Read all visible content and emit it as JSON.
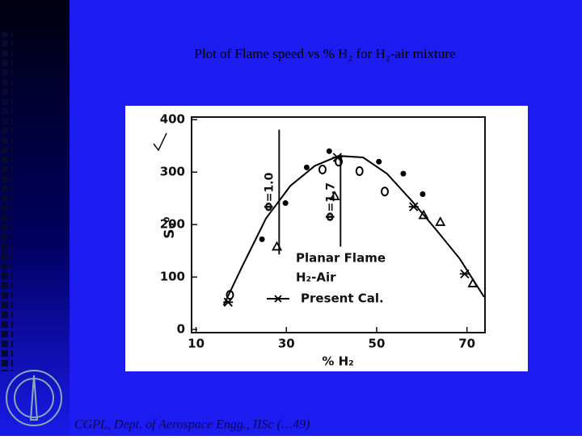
{
  "slide_title": "Plot of Flame speed vs % H₂  for H₂-air mixture",
  "footer": "CGPL, Dept. of Aerospace Engg., IISc (…49)",
  "chart_data": {
    "type": "scatter",
    "x_label": "% H₂",
    "y_label": "Sᵤ⁰",
    "xlim": [
      9,
      74
    ],
    "ylim": [
      -6,
      405
    ],
    "xticks": [
      10,
      30,
      50,
      70
    ],
    "yticks": [
      0,
      100,
      200,
      300,
      400
    ],
    "legend": [
      "Planar Flame",
      "H₂-Air"
    ],
    "series": [
      {
        "name": "Present Cal.",
        "kind": "line",
        "color": "#000000",
        "x": [
          16.1,
          20.2,
          25.5,
          30.9,
          36.3,
          41.6,
          47,
          52.3,
          57.7,
          63,
          68.4,
          73.8
        ],
        "values": [
          46,
          120,
          212,
          274,
          312,
          331,
          328,
          297,
          246,
          192,
          135,
          62
        ]
      },
      {
        "name": null,
        "kind": "dot",
        "color": "#000000",
        "x": [
          24.6,
          29.8,
          34.5,
          39.5,
          50.5,
          55.9,
          60.2
        ],
        "values": [
          172,
          241,
          309,
          340,
          320,
          297,
          258
        ]
      },
      {
        "name": null,
        "kind": "circle",
        "color": "#000000",
        "x": [
          17.5,
          38,
          41.6,
          46.2,
          51.8
        ],
        "values": [
          66,
          305,
          320,
          302,
          263
        ]
      },
      {
        "name": null,
        "kind": "triangle",
        "color": "#000000",
        "x": [
          27.9,
          40.7,
          60.4,
          64.1,
          71.3
        ],
        "values": [
          158,
          254,
          218,
          205,
          88
        ]
      },
      {
        "name": null,
        "kind": "cross",
        "color": "#000000",
        "x": [
          17.1,
          41.3,
          58.2,
          69.5
        ],
        "values": [
          52,
          328,
          234,
          106
        ]
      }
    ],
    "phi_lines": [
      {
        "label": "Φ=1.0",
        "x": 28.4,
        "y_range": [
          143,
          381
        ]
      },
      {
        "label": "Φ=1.7",
        "x": 42,
        "y_range": [
          158,
          328
        ]
      }
    ]
  }
}
